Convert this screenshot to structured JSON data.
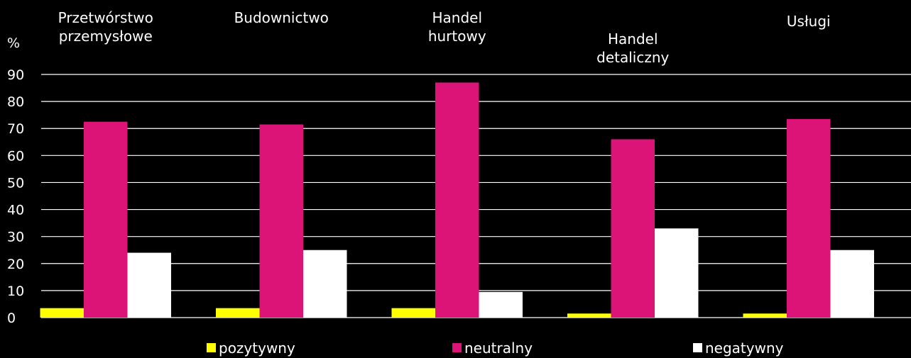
{
  "chart_data": {
    "type": "bar",
    "ylabel": "%",
    "ylim": [
      0,
      90
    ],
    "yticks": [
      0,
      10,
      20,
      30,
      40,
      50,
      60,
      70,
      80,
      90
    ],
    "grid": true,
    "legend_position": "bottom",
    "categories": [
      [
        "Przetwórstwo",
        "przemysłowe"
      ],
      [
        "Budownictwo"
      ],
      [
        "Handel",
        "hurtowy"
      ],
      [
        "Handel",
        "detaliczny"
      ],
      [
        "Usługi"
      ]
    ],
    "series": [
      {
        "name": "pozytywny",
        "color": "#ffff00",
        "values": [
          3.5,
          3.5,
          3.5,
          1.5,
          1.5
        ]
      },
      {
        "name": "neutralny",
        "color": "#dc1478",
        "values": [
          72.5,
          71.5,
          87,
          66,
          73.5
        ]
      },
      {
        "name": "negatywny",
        "color": "#ffffff",
        "values": [
          24,
          25,
          9.5,
          33,
          25
        ]
      }
    ]
  }
}
